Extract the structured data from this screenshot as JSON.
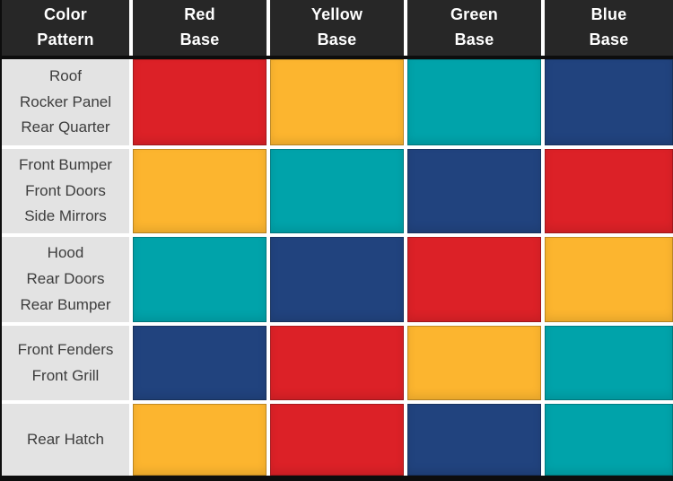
{
  "chart_data": {
    "type": "table",
    "header": {
      "col0": "Color\nPattern",
      "col1": "Red\nBase",
      "col2": "Yellow\nBase",
      "col3": "Green\nBase",
      "col4": "Blue\nBase"
    },
    "rows": [
      {
        "label": "Roof\nRocker Panel\nRear Quarter",
        "cells": [
          "red",
          "yellow",
          "teal",
          "navy"
        ]
      },
      {
        "label": "Front Bumper\nFront Doors\nSide Mirrors",
        "cells": [
          "yellow",
          "teal",
          "navy",
          "red"
        ]
      },
      {
        "label": "Hood\nRear Doors\nRear Bumper",
        "cells": [
          "teal",
          "navy",
          "red",
          "yellow"
        ]
      },
      {
        "label": "Front Fenders\nFront Grill",
        "cells": [
          "navy",
          "red",
          "yellow",
          "teal"
        ]
      },
      {
        "label": "Rear Hatch",
        "cells": [
          "yellow",
          "red",
          "navy",
          "teal"
        ]
      }
    ],
    "palette": {
      "red": "#dc2127",
      "yellow": "#fcb52f",
      "teal": "#00a3aa",
      "navy": "#21437e"
    },
    "ui_colors": {
      "header_bg": "#272727",
      "header_text": "#ffffff",
      "label_bg": "#e3e3e3",
      "label_text": "#3d3d3d",
      "grid_line": "#ffffff",
      "frame": "#0d0d0d"
    }
  }
}
